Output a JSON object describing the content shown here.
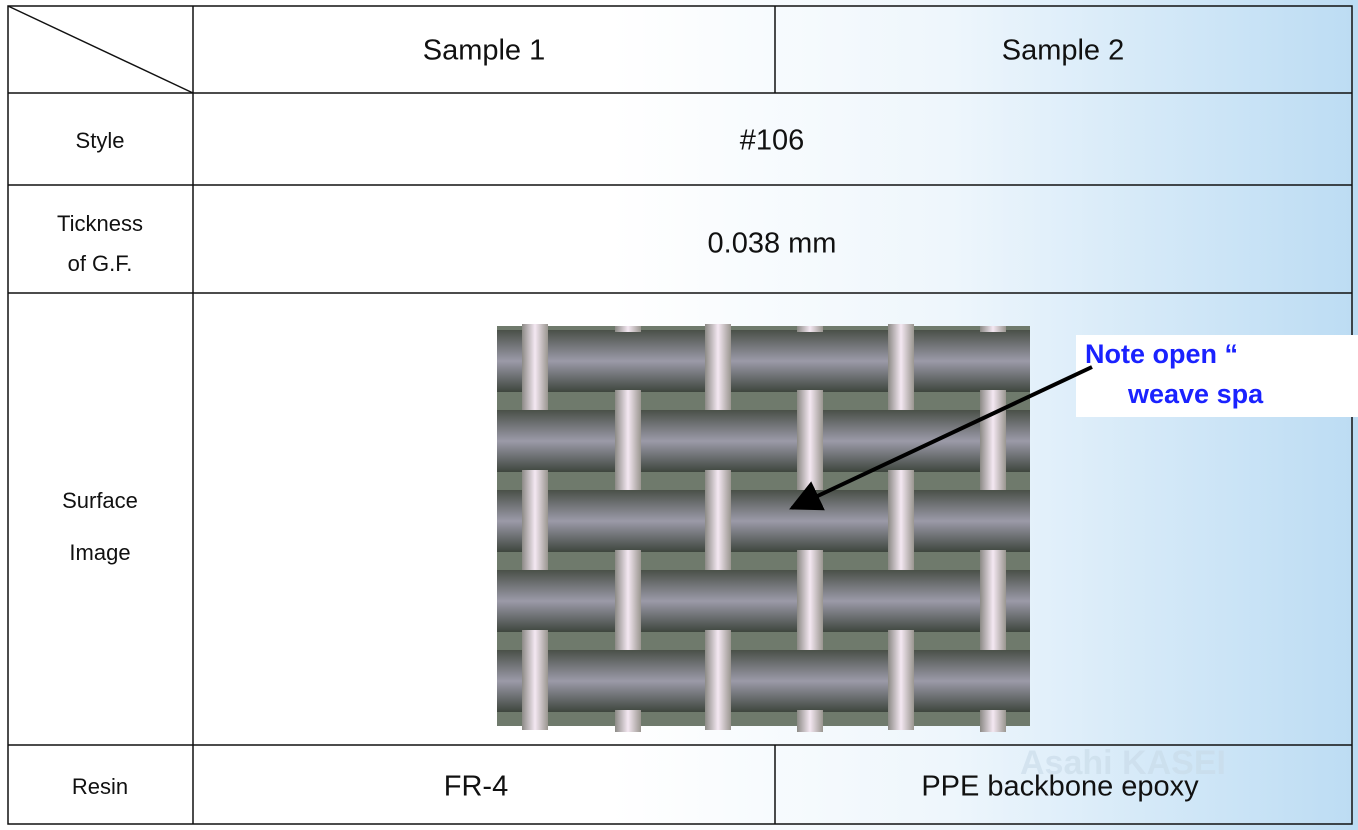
{
  "header": {
    "sample_1": "Sample 1",
    "sample_2": "Sample 2"
  },
  "rows": {
    "style": {
      "label": [
        "Style"
      ],
      "value": "#106"
    },
    "thickness": {
      "label": [
        "Tickness",
        "of G.F."
      ],
      "value": "0.038 mm"
    },
    "surface": {
      "label": [
        "Surface",
        "Image"
      ]
    },
    "resin": {
      "label": [
        "Resin"
      ],
      "sample_1": "FR-4",
      "sample_2": "PPE backbone epoxy"
    }
  },
  "note": [
    "Note open “",
    "weave spa"
  ],
  "watermark": "Asahi KASEI"
}
